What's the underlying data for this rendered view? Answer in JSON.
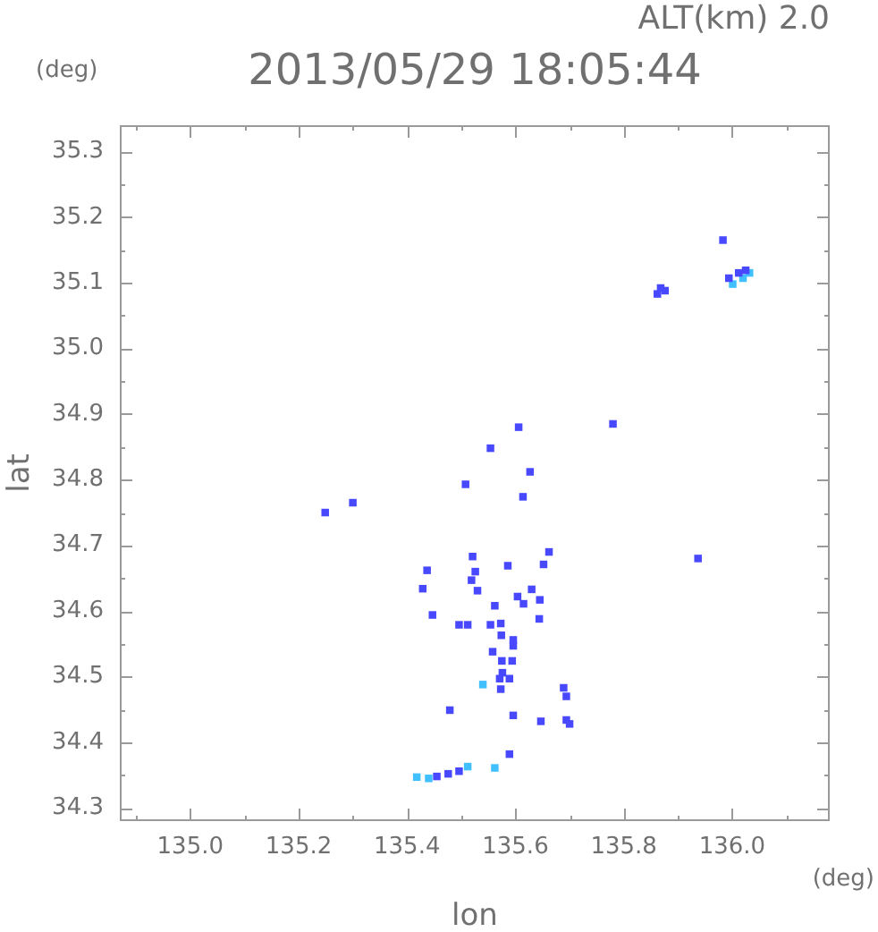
{
  "chart_data": {
    "type": "scatter",
    "title": "2013/05/29 18:05:44",
    "subtitle": "ALT(km) 2.0",
    "xlabel": "lon",
    "ylabel": "lat",
    "annotations": [
      "(deg)",
      "(deg)"
    ],
    "xlim": [
      134.87,
      136.18
    ],
    "ylim": [
      34.28,
      35.34
    ],
    "xticks": [
      {
        "value": 134.9,
        "label": null
      },
      {
        "value": 135,
        "label": "135.0"
      },
      {
        "value": 135.1,
        "label": null
      },
      135.2,
      {
        "value": 135.3,
        "label": null
      },
      135.4,
      {
        "value": 135.5,
        "label": null
      },
      135.6,
      {
        "value": 135.7,
        "label": null
      },
      135.8,
      {
        "value": 135.9,
        "label": null
      },
      {
        "value": 136,
        "label": "136.0"
      },
      {
        "value": 136.1,
        "label": null
      }
    ],
    "yticks": [
      34.3,
      {
        "value": 34.35,
        "label": null
      },
      34.4,
      {
        "value": 34.45,
        "label": null
      },
      34.5,
      {
        "value": 34.55,
        "label": null
      },
      34.6,
      {
        "value": 34.65,
        "label": null
      },
      34.7,
      {
        "value": 34.75,
        "label": null
      },
      34.8,
      {
        "value": 34.85,
        "label": null
      },
      34.9,
      {
        "value": 34.95,
        "label": null
      },
      {
        "value": 35,
        "label": "35.0"
      },
      {
        "value": 35.05,
        "label": null
      },
      35.1,
      {
        "value": 35.15,
        "label": null
      },
      35.2,
      {
        "value": 35.25,
        "label": null
      },
      35.3
    ],
    "marker": "square",
    "series": [
      {
        "color": "#4848ff",
        "x": [
          135.983,
          135.876,
          135.862,
          135.868,
          136.025,
          136.012,
          135.994,
          135.606,
          135.78,
          135.554,
          135.627,
          135.508,
          135.614,
          135.249,
          135.3,
          135.662,
          135.521,
          135.586,
          135.652,
          135.437,
          135.526,
          135.519,
          135.53,
          135.429,
          135.604,
          135.63,
          135.645,
          135.615,
          135.562,
          135.447,
          135.644,
          135.496,
          135.512,
          135.573,
          135.554,
          135.574,
          135.596,
          135.596,
          135.558,
          135.575,
          135.594,
          135.576,
          135.589,
          135.571,
          135.573,
          135.689,
          135.694,
          135.479,
          135.596,
          135.647,
          135.694,
          135.7,
          135.589,
          135.476,
          135.496,
          135.937,
          135.455
        ],
        "values": [
          35.165,
          35.088,
          35.083,
          35.092,
          35.119,
          35.115,
          35.107,
          34.88,
          34.885,
          34.848,
          34.812,
          34.793,
          34.774,
          34.75,
          34.765,
          34.69,
          34.683,
          34.669,
          34.671,
          34.662,
          34.66,
          34.647,
          34.631,
          34.634,
          34.622,
          34.633,
          34.617,
          34.611,
          34.608,
          34.594,
          34.588,
          34.579,
          34.579,
          34.581,
          34.579,
          34.563,
          34.556,
          34.547,
          34.538,
          34.524,
          34.524,
          34.506,
          34.497,
          34.497,
          34.481,
          34.483,
          34.47,
          34.449,
          34.441,
          34.432,
          34.434,
          34.428,
          34.382,
          34.352,
          34.356,
          34.68,
          34.348
        ]
      },
      {
        "color": "#40c0ff",
        "x": [
          136.032,
          136.02,
          136.001,
          135.54,
          135.418,
          135.44,
          135.512,
          135.562
        ],
        "values": [
          35.115,
          35.107,
          35.098,
          34.488,
          34.347,
          34.345,
          34.363,
          34.361
        ]
      }
    ]
  }
}
